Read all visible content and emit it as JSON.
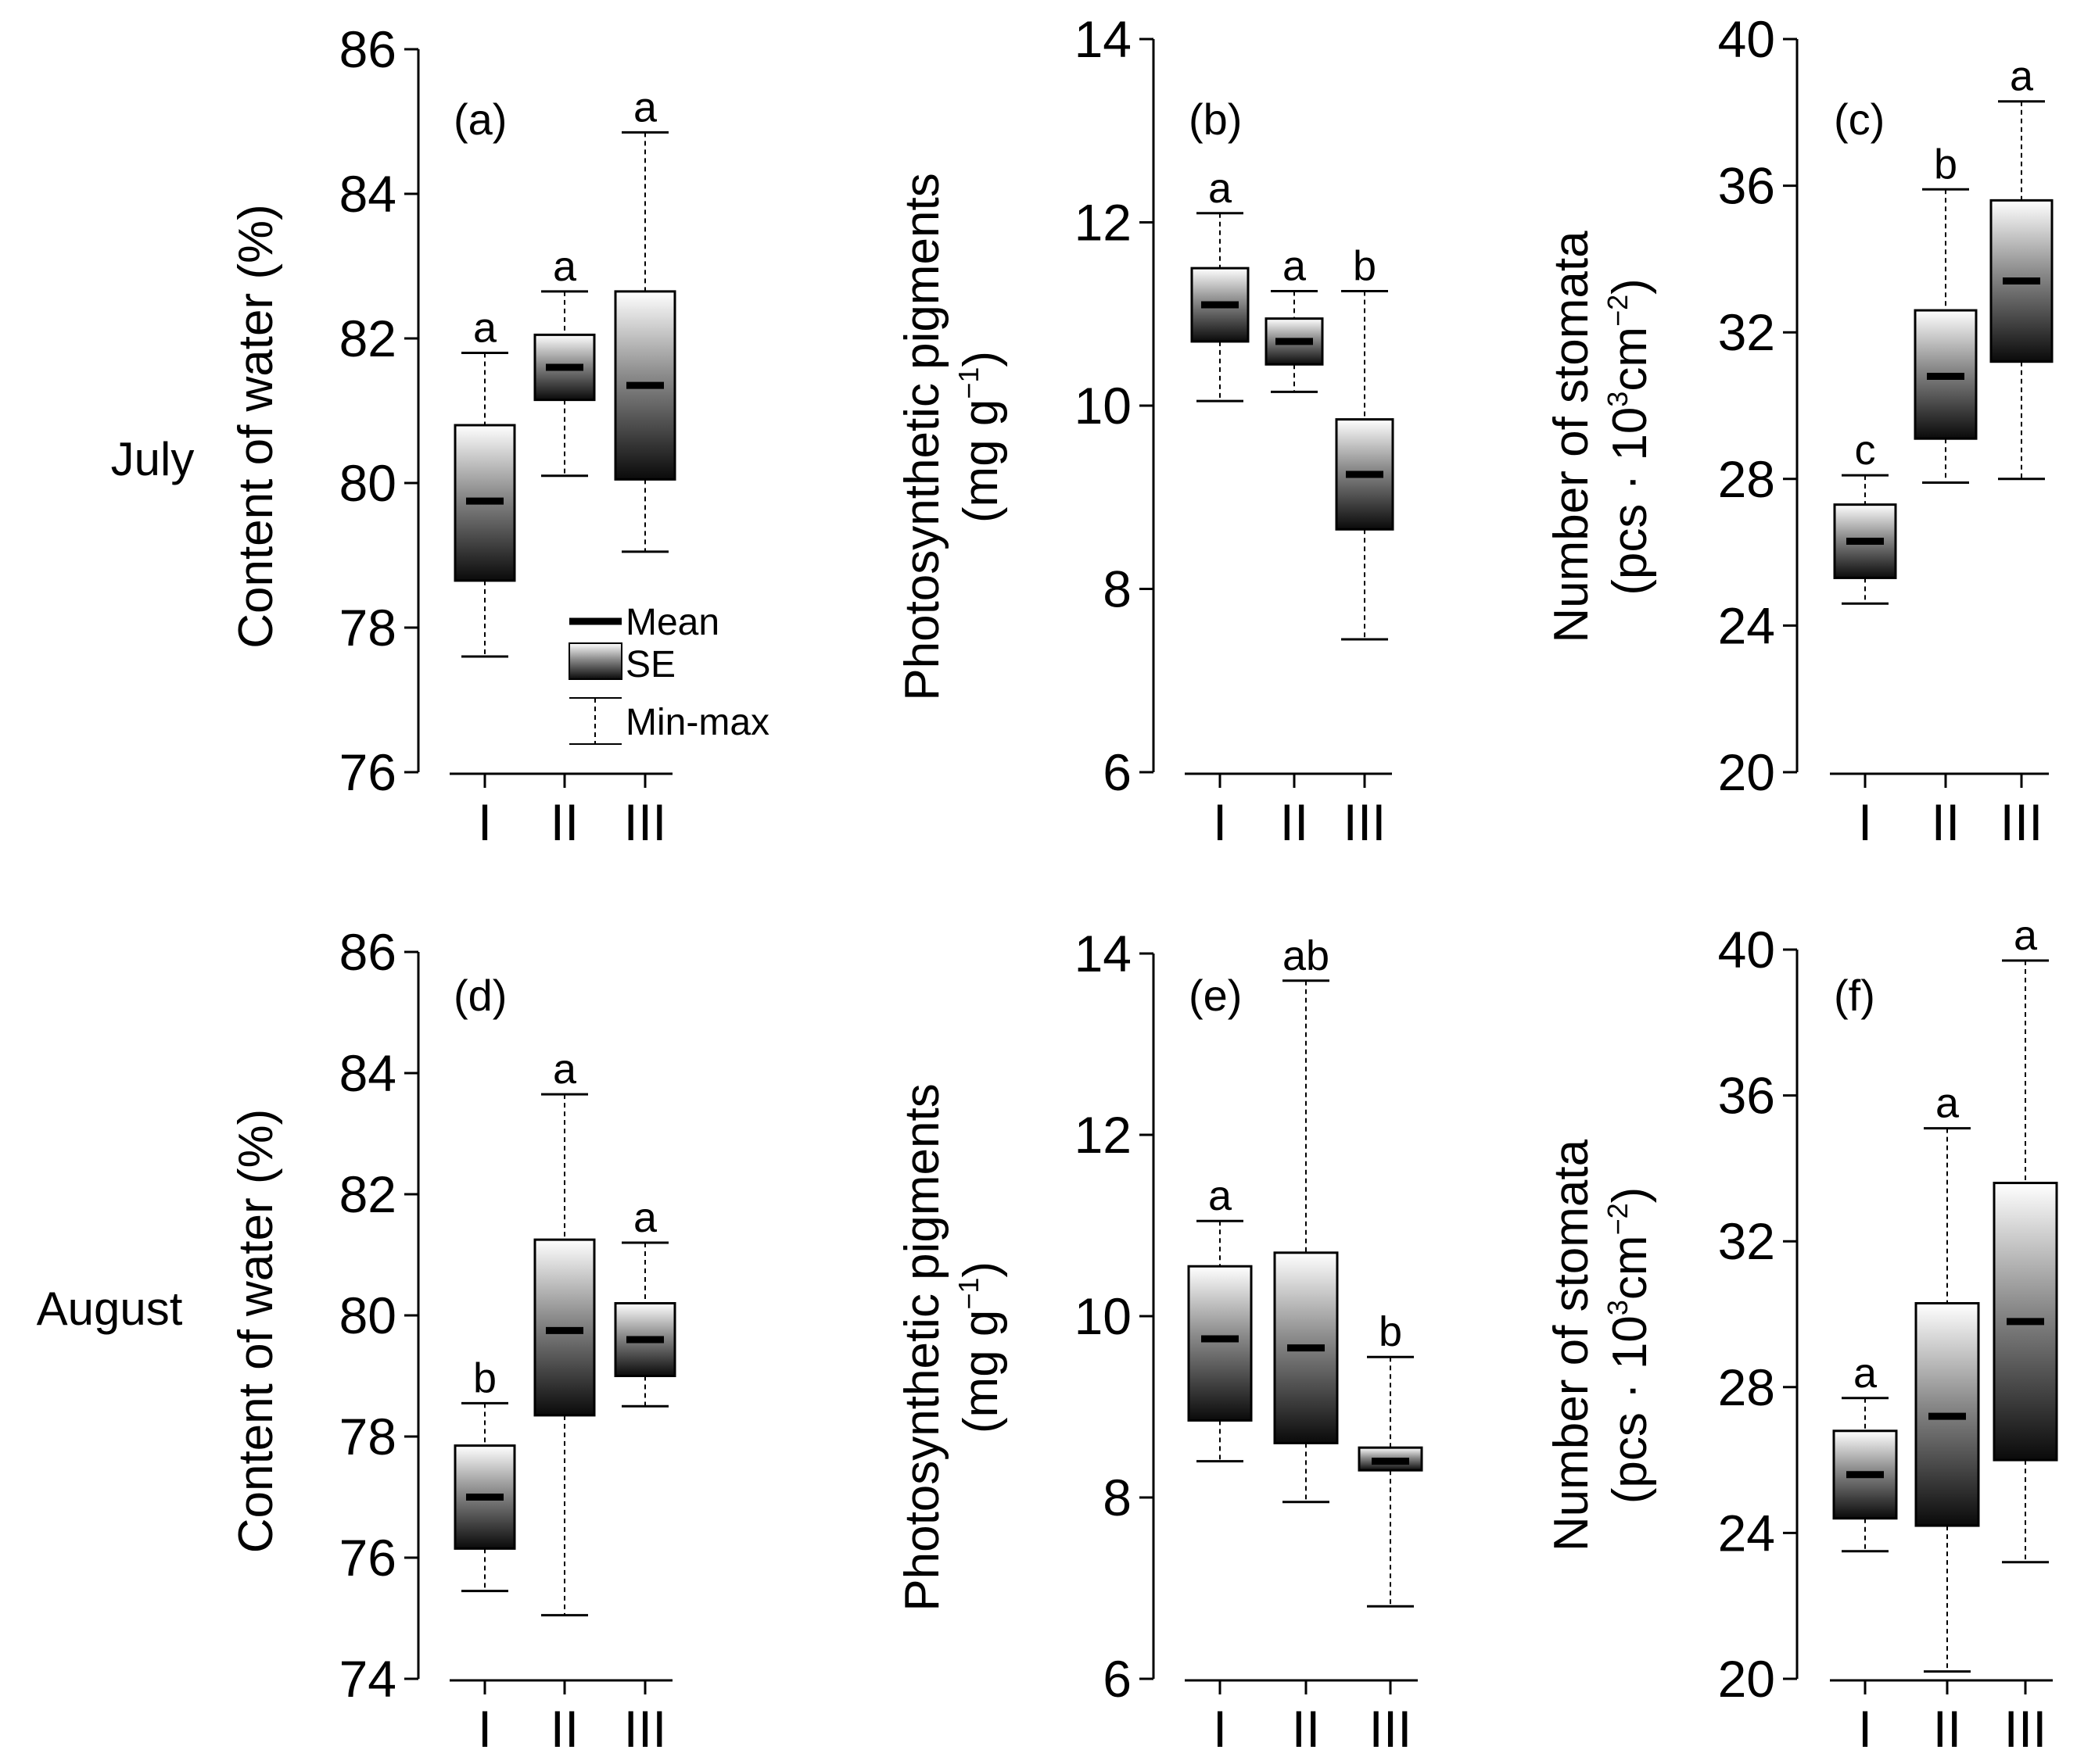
{
  "figure": {
    "rows": [
      {
        "key": "july",
        "label": "July"
      },
      {
        "key": "august",
        "label": "August"
      }
    ],
    "legend": {
      "mean": "Mean",
      "se": "SE",
      "minmax": "Min-max"
    }
  },
  "chart_data": [
    {
      "id": "a",
      "row": "july",
      "type": "box",
      "panel_label": "(a)",
      "ylabel": "Content of water (%)",
      "ylim": [
        76,
        86
      ],
      "yticks": [
        76,
        78,
        80,
        82,
        84,
        86
      ],
      "categories": [
        "I",
        "II",
        "III"
      ],
      "boxes": [
        {
          "min": 77.6,
          "se_low": 78.65,
          "mean": 79.75,
          "se_high": 80.8,
          "max": 81.8,
          "sig": "a"
        },
        {
          "min": 80.1,
          "se_low": 81.15,
          "mean": 81.6,
          "se_high": 82.05,
          "max": 82.65,
          "sig": "a"
        },
        {
          "min": 79.05,
          "se_low": 80.05,
          "mean": 81.35,
          "se_high": 82.65,
          "max": 84.85,
          "sig": "a"
        }
      ]
    },
    {
      "id": "b",
      "row": "july",
      "type": "box",
      "panel_label": "(b)",
      "ylabel": "Photosynthetic pigments",
      "ylabel2": "(mg g",
      "ylabel2_sup": "−1",
      "ylabel2_end": ")",
      "ylim": [
        6,
        14
      ],
      "yticks": [
        6,
        8,
        10,
        12,
        14
      ],
      "categories": [
        "I",
        "II",
        "III"
      ],
      "boxes": [
        {
          "min": 10.05,
          "se_low": 10.7,
          "mean": 11.1,
          "se_high": 11.5,
          "max": 12.1,
          "sig": "a"
        },
        {
          "min": 10.15,
          "se_low": 10.45,
          "mean": 10.7,
          "se_high": 10.95,
          "max": 11.25,
          "sig": "a"
        },
        {
          "min": 7.45,
          "se_low": 8.65,
          "mean": 9.25,
          "se_high": 9.85,
          "max": 11.25,
          "sig": "b"
        }
      ]
    },
    {
      "id": "c",
      "row": "july",
      "type": "box",
      "panel_label": "(c)",
      "ylabel": "Number of stomata",
      "ylabel2": "(pcs · 10",
      "ylabel2_sup": "3",
      "ylabel2_mid": "cm",
      "ylabel2_sup2": "−2",
      "ylabel2_end": ")",
      "ylim": [
        20,
        40
      ],
      "yticks": [
        20,
        24,
        28,
        32,
        36,
        40
      ],
      "categories": [
        "I",
        "II",
        "III"
      ],
      "boxes": [
        {
          "min": 24.6,
          "se_low": 25.3,
          "mean": 26.3,
          "se_high": 27.3,
          "max": 28.1,
          "sig": "c"
        },
        {
          "min": 27.9,
          "se_low": 29.1,
          "mean": 30.8,
          "se_high": 32.6,
          "max": 35.9,
          "sig": "b"
        },
        {
          "min": 28.0,
          "se_low": 31.2,
          "mean": 33.4,
          "se_high": 35.6,
          "max": 38.3,
          "sig": "a"
        }
      ]
    },
    {
      "id": "d",
      "row": "august",
      "type": "box",
      "panel_label": "(d)",
      "ylabel": "Content of water (%)",
      "ylim": [
        74,
        86
      ],
      "yticks": [
        74,
        76,
        78,
        80,
        82,
        84,
        86
      ],
      "categories": [
        "I",
        "II",
        "III"
      ],
      "boxes": [
        {
          "min": 75.45,
          "se_low": 76.15,
          "mean": 77.0,
          "se_high": 77.85,
          "max": 78.55,
          "sig": "b"
        },
        {
          "min": 75.05,
          "se_low": 78.35,
          "mean": 79.75,
          "se_high": 81.25,
          "max": 83.65,
          "sig": "a"
        },
        {
          "min": 78.5,
          "se_low": 79.0,
          "mean": 79.6,
          "se_high": 80.2,
          "max": 81.2,
          "sig": "a"
        }
      ]
    },
    {
      "id": "e",
      "row": "august",
      "type": "box",
      "panel_label": "(e)",
      "ylabel": "Photosynthetic pigments",
      "ylabel2": "(mg g",
      "ylabel2_sup": "−1",
      "ylabel2_end": ")",
      "ylim": [
        6,
        14
      ],
      "yticks": [
        6,
        8,
        10,
        12,
        14
      ],
      "categories": [
        "I",
        "II",
        "III"
      ],
      "boxes": [
        {
          "min": 8.4,
          "se_low": 8.85,
          "mean": 9.75,
          "se_high": 10.55,
          "max": 11.05,
          "sig": "a"
        },
        {
          "min": 7.95,
          "se_low": 8.6,
          "mean": 9.65,
          "se_high": 10.7,
          "max": 13.7,
          "sig": "ab"
        },
        {
          "min": 6.8,
          "se_low": 8.3,
          "mean": 8.4,
          "se_high": 8.55,
          "max": 9.55,
          "sig": "b"
        }
      ]
    },
    {
      "id": "f",
      "row": "august",
      "type": "box",
      "panel_label": "(f)",
      "ylabel": "Number of stomata",
      "ylabel2": "(pcs · 10",
      "ylabel2_sup": "3",
      "ylabel2_mid": "cm",
      "ylabel2_sup2": "−2",
      "ylabel2_end": ")",
      "ylim": [
        20,
        40
      ],
      "yticks": [
        20,
        24,
        28,
        32,
        36,
        40
      ],
      "categories": [
        "I",
        "II",
        "III"
      ],
      "boxes": [
        {
          "min": 23.5,
          "se_low": 24.4,
          "mean": 25.6,
          "se_high": 26.8,
          "max": 27.7,
          "sig": "a"
        },
        {
          "min": 20.2,
          "se_low": 24.2,
          "mean": 27.2,
          "se_high": 30.3,
          "max": 35.1,
          "sig": "a"
        },
        {
          "min": 23.2,
          "se_low": 26.0,
          "mean": 29.8,
          "se_high": 33.6,
          "max": 39.7,
          "sig": "a"
        }
      ]
    }
  ]
}
